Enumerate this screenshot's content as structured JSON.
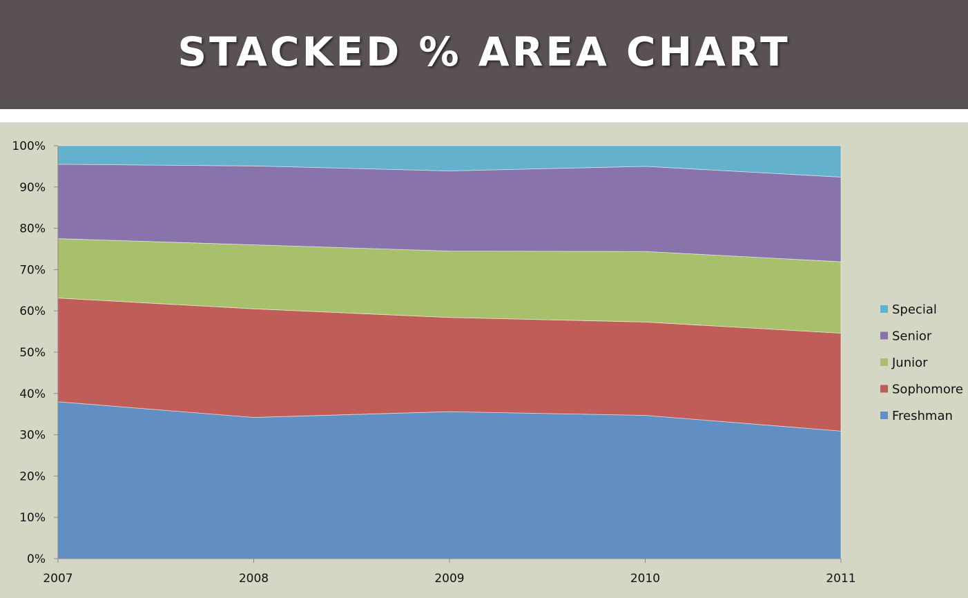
{
  "page": {
    "title": "STACKED % AREA CHART"
  },
  "chart_data": {
    "type": "area",
    "stacked": true,
    "percent": true,
    "title": "",
    "xlabel": "",
    "ylabel": "",
    "x": [
      "2007",
      "2008",
      "2009",
      "2010",
      "2011"
    ],
    "ylim": [
      0,
      100
    ],
    "yticks": [
      "0%",
      "10%",
      "20%",
      "30%",
      "40%",
      "50%",
      "60%",
      "70%",
      "80%",
      "90%",
      "100%"
    ],
    "grid": false,
    "legend_position": "right",
    "series": [
      {
        "name": "Freshman",
        "color": "#618fc4",
        "values": [
          38.0,
          34.2,
          35.6,
          34.7,
          30.9
        ]
      },
      {
        "name": "Sophomore",
        "color": "#c05d59",
        "values": [
          25.1,
          26.3,
          22.8,
          22.6,
          23.7
        ]
      },
      {
        "name": "Junior",
        "color": "#a8c06c",
        "values": [
          14.4,
          15.5,
          16.1,
          17.1,
          17.3
        ]
      },
      {
        "name": "Senior",
        "color": "#8973ab",
        "values": [
          18.0,
          19.1,
          19.4,
          20.6,
          20.5
        ]
      },
      {
        "name": "Special",
        "color": "#63b1cc",
        "values": [
          4.5,
          4.9,
          6.1,
          5.0,
          7.6
        ]
      }
    ]
  }
}
